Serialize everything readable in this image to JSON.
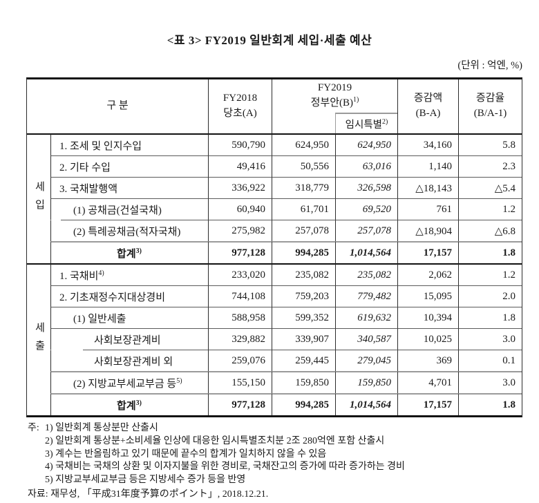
{
  "title": "<표 3> FY2019 일반회계 세입·세출 예산",
  "unit_note": "(단위 : 억엔, %)",
  "table": {
    "header": {
      "category": "구 분",
      "fy2018": {
        "line1": "FY2018",
        "line2": "당초(A)"
      },
      "fy2019": {
        "line1": "FY2019",
        "line2": "정부안(B)",
        "sup": "1)"
      },
      "temp": {
        "label": "임시특별",
        "sup": "2)"
      },
      "diff": {
        "line1": "증감액",
        "line2": "(B-A)"
      },
      "rate": {
        "line1": "증감율",
        "line2": "(B/A-1)"
      }
    },
    "sections": [
      {
        "label": "세입",
        "rows": [
          {
            "item": "1. 조세 및 인지수입",
            "fy2018": "590,790",
            "fy2019": "624,950",
            "temp": "624,950",
            "diff": "34,160",
            "rate": "5.8"
          },
          {
            "item": "2. 기타 수입",
            "fy2018": "49,416",
            "fy2019": "50,556",
            "temp": "63,016",
            "diff": "1,140",
            "rate": "2.3"
          },
          {
            "item": "3. 국채발행액",
            "fy2018": "336,922",
            "fy2019": "318,779",
            "temp": "326,598",
            "diff": "△18,143",
            "rate": "△5.4"
          },
          {
            "item": "(1) 공채금(건설국채)",
            "fy2018": "60,940",
            "fy2019": "61,701",
            "temp": "69,520",
            "diff": "761",
            "rate": "1.2"
          },
          {
            "item": "(2) 특례공채금(적자국채)",
            "fy2018": "275,982",
            "fy2019": "257,078",
            "temp": "257,078",
            "diff": "△18,904",
            "rate": "△6.8"
          },
          {
            "item": "합계",
            "sup": "3)",
            "fy2018": "977,128",
            "fy2019": "994,285",
            "temp": "1,014,564",
            "diff": "17,157",
            "rate": "1.8"
          }
        ]
      },
      {
        "label": "세출",
        "rows": [
          {
            "item": "1. 국채비",
            "sup": "4)",
            "fy2018": "233,020",
            "fy2019": "235,082",
            "temp": "235,082",
            "diff": "2,062",
            "rate": "1.2"
          },
          {
            "item": "2. 기초재정수지대상경비",
            "fy2018": "744,108",
            "fy2019": "759,203",
            "temp": "779,482",
            "diff": "15,095",
            "rate": "2.0"
          },
          {
            "item": "(1) 일반세출",
            "fy2018": "588,958",
            "fy2019": "599,352",
            "temp": "619,632",
            "diff": "10,394",
            "rate": "1.8"
          },
          {
            "item": "사회보장관계비",
            "fy2018": "329,882",
            "fy2019": "339,907",
            "temp": "340,587",
            "diff": "10,025",
            "rate": "3.0"
          },
          {
            "item": "사회보장관계비 외",
            "fy2018": "259,076",
            "fy2019": "259,445",
            "temp": "279,045",
            "diff": "369",
            "rate": "0.1"
          },
          {
            "item": "(2) 지방교부세교부금 등",
            "sup": "5)",
            "fy2018": "155,150",
            "fy2019": "159,850",
            "temp": "159,850",
            "diff": "4,701",
            "rate": "3.0"
          },
          {
            "item": "합계",
            "sup": "3)",
            "fy2018": "977,128",
            "fy2019": "994,285",
            "temp": "1,014,564",
            "diff": "17,157",
            "rate": "1.8"
          }
        ]
      }
    ]
  },
  "footnotes": {
    "prefix": "주:",
    "items": [
      "1) 일반회계 통상분만 산출시",
      "2) 일반회계 통상분+소비세율 인상에 대응한 임시특별조치분 2조 280억엔 포함 산출시",
      "3) 계수는 반올림하고 있기 때문에 끝수의 합계가 일치하지 않을 수 있음",
      "4) 국채비는 국채의 상환 및 이자지불을 위한 경비로, 국채잔고의 증가에 따라 증가하는 경비",
      "5) 지방교부세교부금 등은 지방세수 증가 등을 반영"
    ],
    "source": "자료: 재무성, 「平成31年度予算のポイント」, 2018.12.21."
  }
}
